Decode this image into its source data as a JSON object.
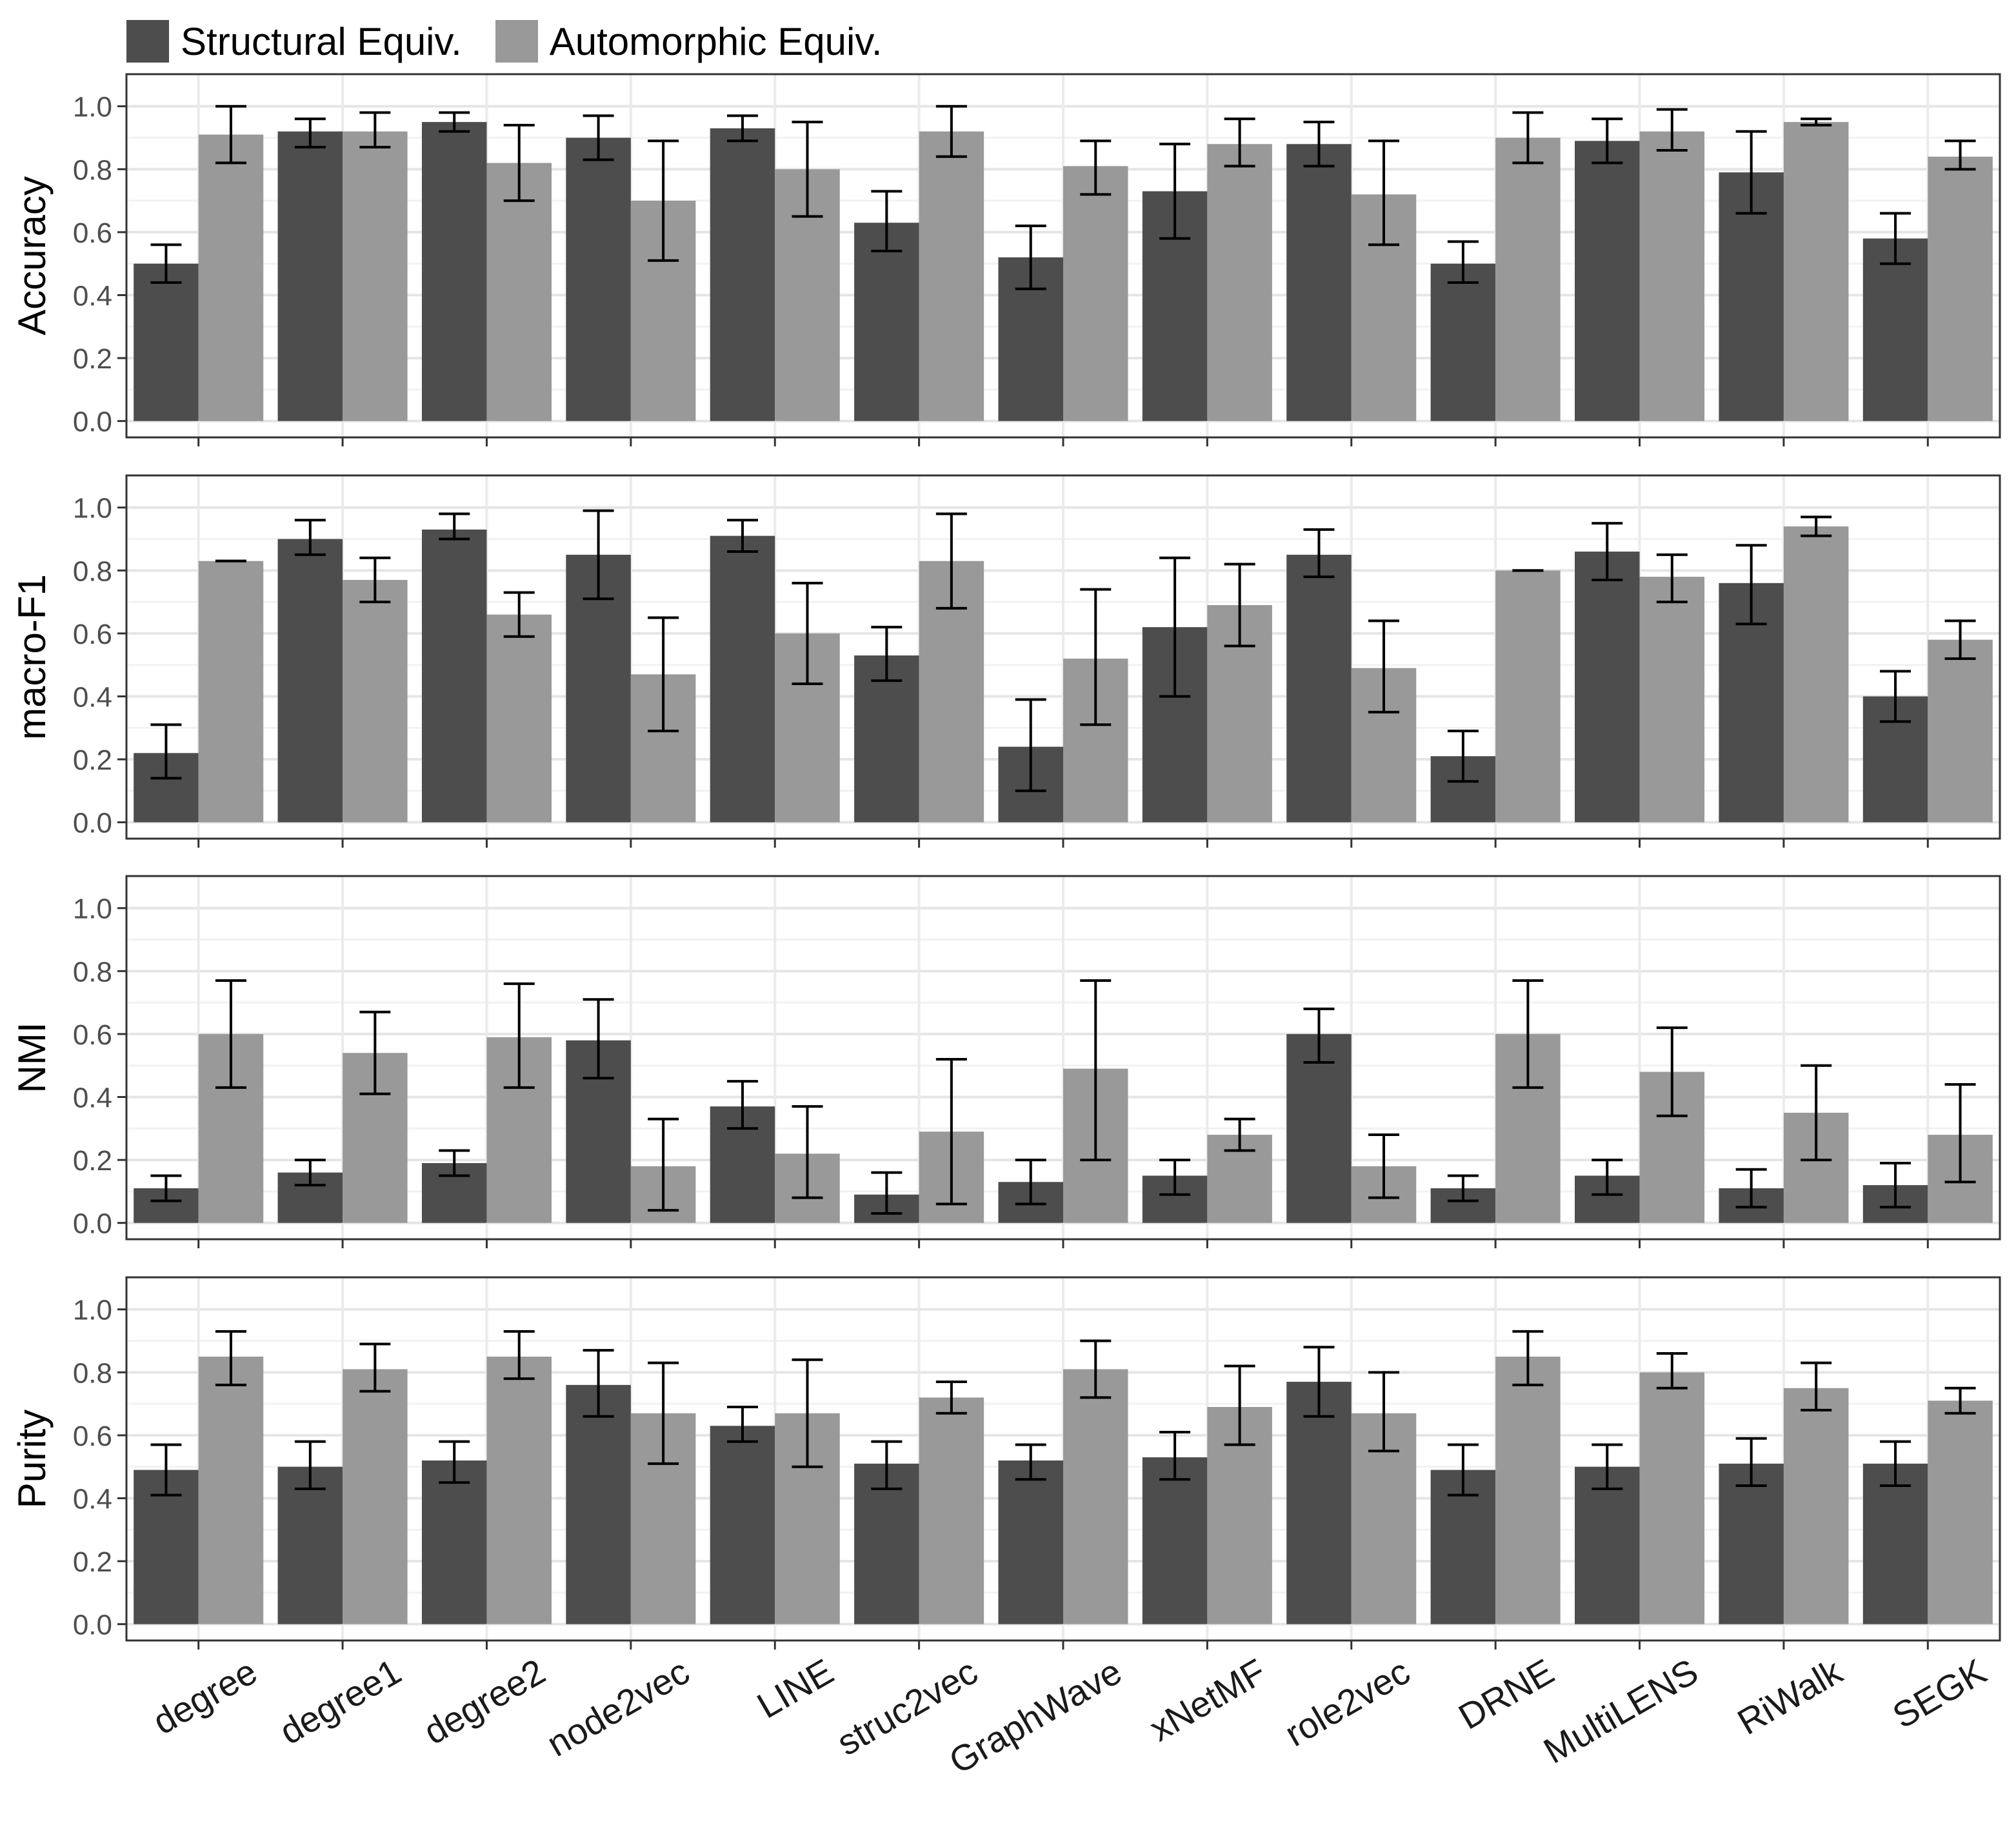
{
  "legend": {
    "items": [
      {
        "label": "Structural Equiv.",
        "color": "#4d4d4d"
      },
      {
        "label": "Automorphic Equiv.",
        "color": "#999999"
      }
    ]
  },
  "chart_data": {
    "type": "bar",
    "categories": [
      "degree",
      "degree1",
      "degree2",
      "node2vec",
      "LINE",
      "struc2vec",
      "GraphWave",
      "xNetMF",
      "role2vec",
      "DRNE",
      "MultiLENS",
      "RiWalk",
      "SEGK"
    ],
    "y_ticks": [
      "0.0",
      "0.2",
      "0.4",
      "0.6",
      "0.8",
      "1.0"
    ],
    "ylim": [
      0,
      1.05
    ],
    "grid": true,
    "legend_position": "top-left",
    "series_colors": [
      "#4d4d4d",
      "#999999"
    ],
    "panels": [
      {
        "ylabel": "Accuracy",
        "series": [
          {
            "name": "Structural Equiv.",
            "values": [
              0.5,
              0.92,
              0.95,
              0.9,
              0.93,
              0.63,
              0.52,
              0.73,
              0.88,
              0.5,
              0.89,
              0.79,
              0.58
            ],
            "err_low": [
              0.44,
              0.87,
              0.92,
              0.83,
              0.89,
              0.54,
              0.42,
              0.58,
              0.81,
              0.44,
              0.82,
              0.66,
              0.5
            ],
            "err_high": [
              0.56,
              0.96,
              0.98,
              0.97,
              0.97,
              0.73,
              0.62,
              0.88,
              0.95,
              0.57,
              0.96,
              0.92,
              0.66
            ]
          },
          {
            "name": "Automorphic Equiv.",
            "values": [
              0.91,
              0.92,
              0.82,
              0.7,
              0.8,
              0.92,
              0.81,
              0.88,
              0.72,
              0.9,
              0.92,
              0.95,
              0.84
            ],
            "err_low": [
              0.82,
              0.87,
              0.7,
              0.51,
              0.65,
              0.84,
              0.72,
              0.81,
              0.56,
              0.82,
              0.86,
              0.94,
              0.8
            ],
            "err_high": [
              1.0,
              0.98,
              0.94,
              0.89,
              0.95,
              1.0,
              0.89,
              0.96,
              0.89,
              0.98,
              0.99,
              0.96,
              0.89
            ]
          }
        ]
      },
      {
        "ylabel": "macro-F1",
        "series": [
          {
            "name": "Structural Equiv.",
            "values": [
              0.22,
              0.9,
              0.93,
              0.85,
              0.91,
              0.53,
              0.24,
              0.62,
              0.85,
              0.21,
              0.86,
              0.76,
              0.4
            ],
            "err_low": [
              0.14,
              0.85,
              0.9,
              0.71,
              0.86,
              0.45,
              0.1,
              0.4,
              0.78,
              0.13,
              0.77,
              0.63,
              0.32
            ],
            "err_high": [
              0.31,
              0.96,
              0.98,
              0.99,
              0.96,
              0.62,
              0.39,
              0.84,
              0.93,
              0.29,
              0.95,
              0.88,
              0.48
            ]
          },
          {
            "name": "Automorphic Equiv.",
            "values": [
              0.83,
              0.77,
              0.66,
              0.47,
              0.6,
              0.83,
              0.52,
              0.69,
              0.49,
              0.8,
              0.78,
              0.94,
              0.58
            ],
            "err_low": [
              0.83,
              0.7,
              0.59,
              0.29,
              0.44,
              0.68,
              0.31,
              0.56,
              0.35,
              0.8,
              0.7,
              0.91,
              0.52
            ],
            "err_high": [
              0.83,
              0.84,
              0.73,
              0.65,
              0.76,
              0.98,
              0.74,
              0.82,
              0.64,
              0.8,
              0.85,
              0.97,
              0.64
            ]
          }
        ]
      },
      {
        "ylabel": "NMI",
        "series": [
          {
            "name": "Structural Equiv.",
            "values": [
              0.11,
              0.16,
              0.19,
              0.58,
              0.37,
              0.09,
              0.13,
              0.15,
              0.6,
              0.11,
              0.15,
              0.11,
              0.12
            ],
            "err_low": [
              0.07,
              0.12,
              0.15,
              0.46,
              0.3,
              0.03,
              0.06,
              0.09,
              0.51,
              0.07,
              0.09,
              0.05,
              0.05
            ],
            "err_high": [
              0.15,
              0.2,
              0.23,
              0.71,
              0.45,
              0.16,
              0.2,
              0.2,
              0.68,
              0.15,
              0.2,
              0.17,
              0.19
            ]
          },
          {
            "name": "Automorphic Equiv.",
            "values": [
              0.6,
              0.54,
              0.59,
              0.18,
              0.22,
              0.29,
              0.49,
              0.28,
              0.18,
              0.6,
              0.48,
              0.35,
              0.28
            ],
            "err_low": [
              0.43,
              0.41,
              0.43,
              0.04,
              0.08,
              0.06,
              0.2,
              0.23,
              0.08,
              0.43,
              0.34,
              0.2,
              0.13
            ],
            "err_high": [
              0.77,
              0.67,
              0.76,
              0.33,
              0.37,
              0.52,
              0.77,
              0.33,
              0.28,
              0.77,
              0.62,
              0.5,
              0.44
            ]
          }
        ]
      },
      {
        "ylabel": "Purity",
        "series": [
          {
            "name": "Structural Equiv.",
            "values": [
              0.49,
              0.5,
              0.52,
              0.76,
              0.63,
              0.51,
              0.52,
              0.53,
              0.77,
              0.49,
              0.5,
              0.51,
              0.51
            ],
            "err_low": [
              0.41,
              0.43,
              0.45,
              0.66,
              0.58,
              0.43,
              0.46,
              0.46,
              0.66,
              0.41,
              0.43,
              0.44,
              0.44
            ],
            "err_high": [
              0.57,
              0.58,
              0.58,
              0.87,
              0.69,
              0.58,
              0.57,
              0.61,
              0.88,
              0.57,
              0.57,
              0.59,
              0.58
            ]
          },
          {
            "name": "Automorphic Equiv.",
            "values": [
              0.85,
              0.81,
              0.85,
              0.67,
              0.67,
              0.72,
              0.81,
              0.69,
              0.67,
              0.85,
              0.8,
              0.75,
              0.71
            ],
            "err_low": [
              0.76,
              0.74,
              0.78,
              0.51,
              0.5,
              0.67,
              0.72,
              0.57,
              0.55,
              0.76,
              0.75,
              0.68,
              0.67
            ],
            "err_high": [
              0.93,
              0.89,
              0.93,
              0.83,
              0.84,
              0.77,
              0.9,
              0.82,
              0.8,
              0.93,
              0.86,
              0.83,
              0.75
            ]
          }
        ]
      }
    ]
  }
}
